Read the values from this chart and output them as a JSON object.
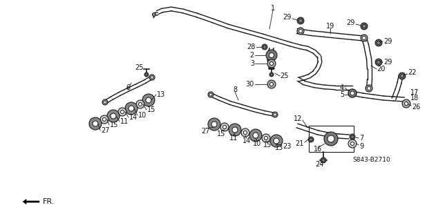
{
  "background_color": "#ffffff",
  "diagram_code": "S843-B2710",
  "fr_label": "FR.",
  "line_color": "#1a1a1a",
  "label_color": "#111111",
  "label_fontsize": 7.0,
  "figsize": [
    6.18,
    3.2
  ],
  "dpi": 100
}
